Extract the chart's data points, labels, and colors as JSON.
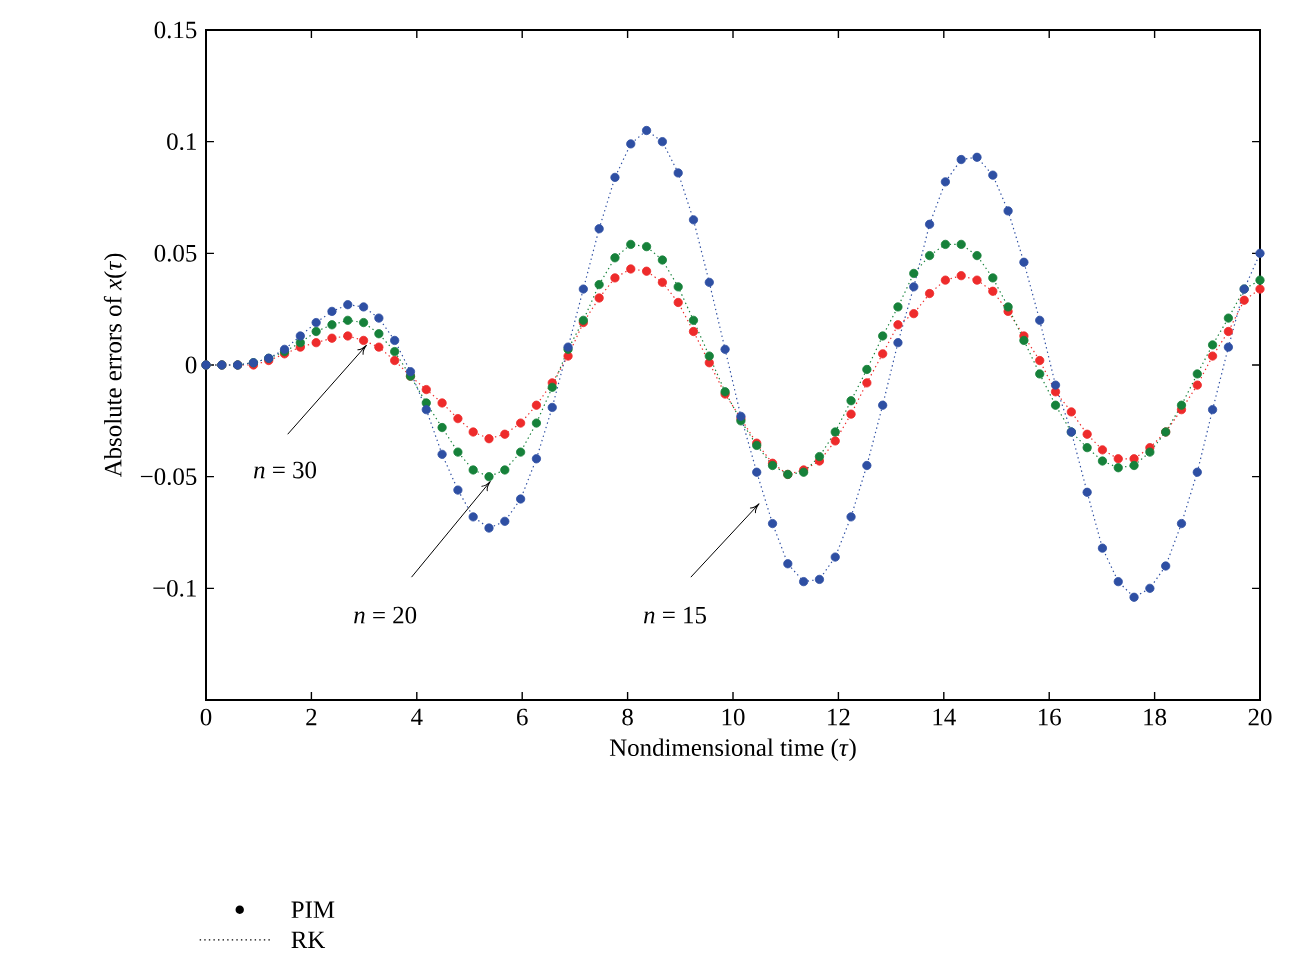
{
  "chart_data": {
    "type": "line",
    "xlabel": "Nondimensional time (*τ*)",
    "ylabel": "Absolute errors of *x*(*τ*)",
    "xlim": [
      0,
      20
    ],
    "ylim": [
      -0.15,
      0.15
    ],
    "xticks": [
      0,
      2,
      4,
      6,
      8,
      10,
      12,
      14,
      16,
      18,
      20
    ],
    "yticks": [
      {
        "value": -0.1,
        "label": "−0.1"
      },
      {
        "value": -0.05,
        "label": "−0.05"
      },
      0,
      0.05,
      0.1,
      0.15
    ],
    "marker": "circle",
    "line_style": "dotted",
    "grid": false,
    "x": [
      0,
      0.3,
      0.6,
      0.9,
      1.19,
      1.49,
      1.79,
      2.09,
      2.39,
      2.69,
      2.99,
      3.28,
      3.58,
      3.88,
      4.18,
      4.48,
      4.78,
      5.07,
      5.37,
      5.67,
      5.97,
      6.27,
      6.57,
      6.87,
      7.16,
      7.46,
      7.76,
      8.06,
      8.36,
      8.66,
      8.96,
      9.25,
      9.55,
      9.85,
      10.15,
      10.45,
      10.75,
      11.04,
      11.34,
      11.64,
      11.94,
      12.24,
      12.54,
      12.84,
      13.13,
      13.43,
      13.73,
      14.03,
      14.33,
      14.63,
      14.93,
      15.22,
      15.52,
      15.82,
      16.12,
      16.42,
      16.72,
      17.01,
      17.31,
      17.61,
      17.91,
      18.21,
      18.51,
      18.81,
      19.1,
      19.4,
      19.7,
      20
    ],
    "series": [
      {
        "color": "#2e4fa3",
        "values": [
          0,
          0,
          0,
          0.001,
          0.003,
          0.007,
          0.013,
          0.019,
          0.024,
          0.027,
          0.026,
          0.021,
          0.011,
          -0.003,
          -0.02,
          -0.04,
          -0.056,
          -0.068,
          -0.073,
          -0.07,
          -0.06,
          -0.042,
          -0.019,
          0.008,
          0.034,
          0.061,
          0.084,
          0.099,
          0.105,
          0.1,
          0.086,
          0.065,
          0.037,
          0.007,
          -0.023,
          -0.048,
          -0.071,
          -0.089,
          -0.097,
          -0.096,
          -0.086,
          -0.068,
          -0.045,
          -0.018,
          0.01,
          0.035,
          0.063,
          0.082,
          0.092,
          0.093,
          0.085,
          0.069,
          0.046,
          0.02,
          -0.009,
          -0.03,
          -0.057,
          -0.082,
          -0.097,
          -0.104,
          -0.1,
          -0.09,
          -0.071,
          -0.048,
          -0.02,
          0.008,
          0.034,
          0.05
        ]
      },
      {
        "color": "#16813a",
        "values": [
          0,
          0,
          0,
          0.001,
          0.003,
          0.006,
          0.01,
          0.015,
          0.018,
          0.02,
          0.019,
          0.014,
          0.006,
          -0.005,
          -0.017,
          -0.028,
          -0.039,
          -0.047,
          -0.05,
          -0.047,
          -0.039,
          -0.026,
          -0.01,
          0.007,
          0.02,
          0.036,
          0.048,
          0.054,
          0.053,
          0.047,
          0.035,
          0.02,
          0.004,
          -0.012,
          -0.025,
          -0.036,
          -0.045,
          -0.049,
          -0.048,
          -0.041,
          -0.03,
          -0.016,
          -0.002,
          0.013,
          0.026,
          0.041,
          0.049,
          0.054,
          0.054,
          0.049,
          0.039,
          0.026,
          0.011,
          -0.004,
          -0.018,
          -0.03,
          -0.037,
          -0.043,
          -0.046,
          -0.045,
          -0.039,
          -0.03,
          -0.018,
          -0.004,
          0.009,
          0.021,
          0.034,
          0.038
        ]
      },
      {
        "color": "#ee2b2b",
        "values": [
          0,
          0,
          0,
          0,
          0.002,
          0.005,
          0.008,
          0.01,
          0.012,
          0.013,
          0.011,
          0.008,
          0.002,
          -0.005,
          -0.011,
          -0.017,
          -0.024,
          -0.03,
          -0.033,
          -0.031,
          -0.026,
          -0.018,
          -0.008,
          0.004,
          0.019,
          0.03,
          0.039,
          0.043,
          0.042,
          0.037,
          0.028,
          0.015,
          0.001,
          -0.013,
          -0.024,
          -0.035,
          -0.044,
          -0.049,
          -0.047,
          -0.043,
          -0.034,
          -0.022,
          -0.008,
          0.005,
          0.018,
          0.023,
          0.032,
          0.038,
          0.04,
          0.038,
          0.033,
          0.024,
          0.013,
          0.002,
          -0.012,
          -0.021,
          -0.031,
          -0.038,
          -0.042,
          -0.042,
          -0.037,
          -0.03,
          -0.02,
          -0.009,
          0.004,
          0.015,
          0.029,
          0.034
        ]
      }
    ],
    "annotations": [
      "PIM",
      "RK",
      {
        "text": "*n* = 30",
        "x": 3.05,
        "y": 0.009
      },
      {
        "text": "*n* = 20",
        "x": 5.4,
        "y": -0.052
      },
      {
        "text": "*n* = 15",
        "x": 10.5,
        "y": -0.062
      }
    ]
  }
}
